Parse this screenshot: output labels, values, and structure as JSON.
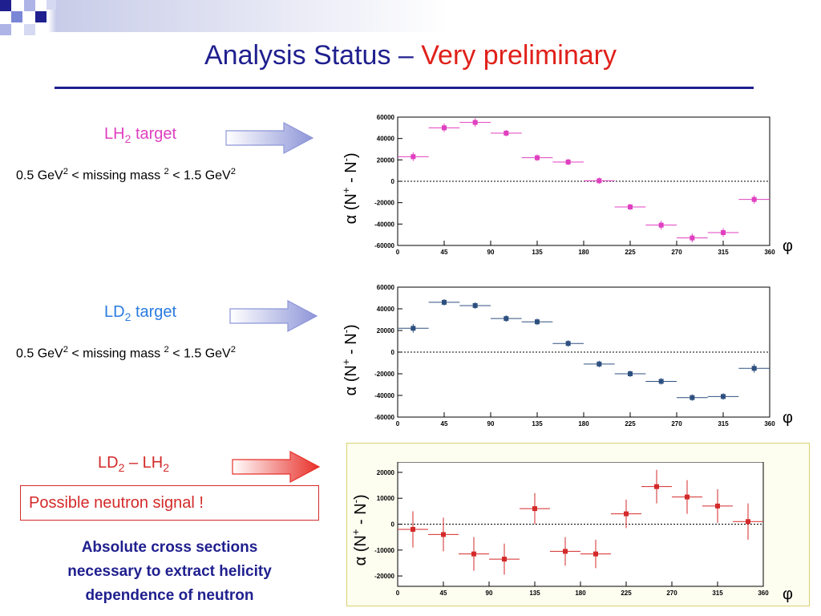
{
  "title": {
    "main": "Analysis Status –",
    "highlight": "Very preliminary"
  },
  "colors": {
    "title": "#1f1f8f",
    "highlight": "#e0201a",
    "lh2": "#e040c0",
    "ld2": "#2a7be0",
    "diff": "#d42a2a",
    "arrow_blue": "#9aa0dd",
    "arrow_red": "#e8302a"
  },
  "panels": [
    {
      "label_prefix": "LH",
      "label_sub": "2",
      "label_suffix": "target",
      "cut": {
        "a": "0.5 GeV",
        "b": "< missing mass",
        "c": "< 1.5 GeV",
        "sup": "2"
      }
    },
    {
      "label_prefix": "LD",
      "label_sub": "2",
      "label_suffix": "target",
      "cut": {
        "a": "0.5 GeV",
        "b": "< missing mass",
        "c": "< 1.5 GeV",
        "sup": "2"
      }
    },
    {
      "label_prefix": "LD",
      "label_sub": "2",
      "label_suffix": "– LH",
      "label_sub2": "2"
    }
  ],
  "signal_text": "Possible neutron signal !",
  "conclusion": [
    "Absolute cross sections",
    "necessary to extract helicity",
    "dependence of neutron"
  ],
  "axis_texts": {
    "ylabel_a": "α (N",
    "ylabel_plus": "+",
    "ylabel_b": " - N",
    "ylabel_minus": "-",
    "ylabel_c": ")",
    "xlabel": "φ"
  },
  "chart_data": [
    {
      "type": "scatter",
      "xlim": [
        0,
        360
      ],
      "ylim": [
        -60000,
        60000
      ],
      "xticks": [
        0,
        45,
        90,
        135,
        180,
        225,
        270,
        315,
        360
      ],
      "yticks": [
        60000,
        40000,
        20000,
        0,
        -20000,
        -40000,
        -60000
      ],
      "color": "#e040c0",
      "points": [
        {
          "x": 15,
          "y": 23000,
          "xerr": 15,
          "yerr": 4000
        },
        {
          "x": 45,
          "y": 50000,
          "xerr": 15,
          "yerr": 4000
        },
        {
          "x": 75,
          "y": 55000,
          "xerr": 15,
          "yerr": 4000
        },
        {
          "x": 105,
          "y": 45000,
          "xerr": 15,
          "yerr": 3000
        },
        {
          "x": 135,
          "y": 22000,
          "xerr": 15,
          "yerr": 3000
        },
        {
          "x": 165,
          "y": 18000,
          "xerr": 15,
          "yerr": 3000
        },
        {
          "x": 195,
          "y": 500,
          "xerr": 15,
          "yerr": 3000
        },
        {
          "x": 225,
          "y": -24000,
          "xerr": 15,
          "yerr": 3000
        },
        {
          "x": 255,
          "y": -41000,
          "xerr": 15,
          "yerr": 4000
        },
        {
          "x": 285,
          "y": -53000,
          "xerr": 15,
          "yerr": 4000
        },
        {
          "x": 315,
          "y": -48000,
          "xerr": 15,
          "yerr": 4000
        },
        {
          "x": 345,
          "y": -17000,
          "xerr": 15,
          "yerr": 4000
        }
      ]
    },
    {
      "type": "scatter",
      "xlim": [
        0,
        360
      ],
      "ylim": [
        -60000,
        60000
      ],
      "xticks": [
        0,
        45,
        90,
        135,
        180,
        225,
        270,
        315,
        360
      ],
      "yticks": [
        60000,
        40000,
        20000,
        0,
        -20000,
        -40000,
        -60000
      ],
      "color": "#2e5080",
      "points": [
        {
          "x": 15,
          "y": 22000,
          "xerr": 15,
          "yerr": 4000
        },
        {
          "x": 45,
          "y": 46000,
          "xerr": 15,
          "yerr": 3000
        },
        {
          "x": 75,
          "y": 43000,
          "xerr": 15,
          "yerr": 3000
        },
        {
          "x": 105,
          "y": 31000,
          "xerr": 15,
          "yerr": 3000
        },
        {
          "x": 135,
          "y": 28000,
          "xerr": 15,
          "yerr": 3000
        },
        {
          "x": 165,
          "y": 8000,
          "xerr": 15,
          "yerr": 3000
        },
        {
          "x": 195,
          "y": -11000,
          "xerr": 15,
          "yerr": 3000
        },
        {
          "x": 225,
          "y": -20000,
          "xerr": 15,
          "yerr": 3000
        },
        {
          "x": 255,
          "y": -27000,
          "xerr": 15,
          "yerr": 3000
        },
        {
          "x": 285,
          "y": -42000,
          "xerr": 15,
          "yerr": 3000
        },
        {
          "x": 315,
          "y": -41000,
          "xerr": 15,
          "yerr": 3000
        },
        {
          "x": 345,
          "y": -15000,
          "xerr": 15,
          "yerr": 4000
        }
      ]
    },
    {
      "type": "scatter",
      "xlim": [
        0,
        360
      ],
      "ylim": [
        -24000,
        24000
      ],
      "xticks": [
        0,
        45,
        90,
        135,
        180,
        225,
        270,
        315,
        360
      ],
      "yticks": [
        20000,
        10000,
        0,
        -10000,
        -20000
      ],
      "color": "#d42a2a",
      "points": [
        {
          "x": 15,
          "y": -2000,
          "xerr": 15,
          "yerr": 7000
        },
        {
          "x": 45,
          "y": -4000,
          "xerr": 15,
          "yerr": 6500
        },
        {
          "x": 75,
          "y": -11500,
          "xerr": 15,
          "yerr": 6500
        },
        {
          "x": 105,
          "y": -13500,
          "xerr": 15,
          "yerr": 6000
        },
        {
          "x": 135,
          "y": 6000,
          "xerr": 15,
          "yerr": 6000
        },
        {
          "x": 165,
          "y": -10500,
          "xerr": 15,
          "yerr": 5500
        },
        {
          "x": 195,
          "y": -11500,
          "xerr": 15,
          "yerr": 5500
        },
        {
          "x": 225,
          "y": 4000,
          "xerr": 15,
          "yerr": 5500
        },
        {
          "x": 255,
          "y": 14500,
          "xerr": 15,
          "yerr": 6500
        },
        {
          "x": 285,
          "y": 10500,
          "xerr": 15,
          "yerr": 6500
        },
        {
          "x": 315,
          "y": 7000,
          "xerr": 15,
          "yerr": 6500
        },
        {
          "x": 345,
          "y": 1000,
          "xerr": 15,
          "yerr": 7000
        }
      ]
    }
  ]
}
